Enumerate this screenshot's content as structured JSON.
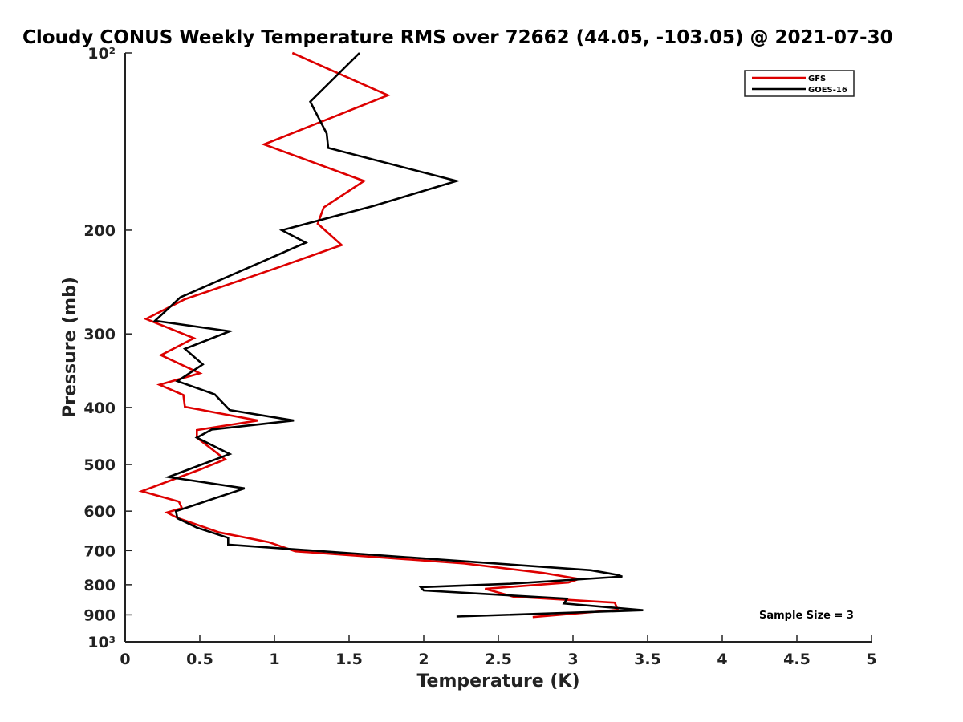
{
  "chart_data": {
    "type": "line",
    "title": "Cloudy CONUS Weekly Temperature RMS over 72662 (44.05, -103.05) @ 2021-07-30",
    "xlabel": "Temperature (K)",
    "ylabel": "Pressure (mb)",
    "xlim": [
      0,
      5
    ],
    "ylim": [
      100,
      1000
    ],
    "yscale": "log",
    "y_reversed": true,
    "grid": false,
    "legend_position": "top-right",
    "x_ticks": [
      0,
      0.5,
      1,
      1.5,
      2,
      2.5,
      3,
      3.5,
      4,
      4.5,
      5
    ],
    "x_tick_labels": [
      "0",
      "0.5",
      "1",
      "1.5",
      "2",
      "2.5",
      "3",
      "3.5",
      "4",
      "4.5",
      "5"
    ],
    "y_ticks": [
      100,
      200,
      300,
      400,
      500,
      600,
      700,
      800,
      900,
      1000
    ],
    "y_tick_labels": [
      "10²",
      "200",
      "300",
      "400",
      "500",
      "600",
      "700",
      "800",
      "900",
      "10³"
    ],
    "annotation": "Sample Size = 3",
    "series": [
      {
        "name": "GFS",
        "color": "#dd0000",
        "x": [
          1.12,
          1.76,
          0.93,
          1.6,
          1.33,
          1.29,
          1.45,
          1.01,
          0.4,
          0.14,
          0.46,
          0.24,
          0.5,
          0.23,
          0.39,
          0.4,
          0.89,
          0.48,
          0.48,
          0.67,
          0.5,
          0.11,
          0.36,
          0.38,
          0.28,
          0.35,
          0.63,
          0.96,
          1.14,
          2.27,
          2.8,
          3.04,
          2.97,
          2.41,
          2.6,
          3.28,
          3.3,
          2.73
        ],
        "y": [
          100,
          118,
          143,
          165,
          183,
          195,
          212,
          232,
          262,
          283,
          305,
          326,
          350,
          366,
          381,
          399,
          421,
          437,
          450,
          490,
          510,
          555,
          578,
          593,
          603,
          616,
          652,
          677,
          702,
          736,
          764,
          782,
          793,
          813,
          838,
          858,
          883,
          908
        ]
      },
      {
        "name": "GOES-16",
        "color": "#000000",
        "x": [
          1.57,
          1.24,
          1.35,
          1.36,
          2.22,
          1.66,
          1.05,
          1.21,
          0.37,
          0.2,
          0.7,
          0.4,
          0.52,
          0.35,
          0.6,
          0.7,
          1.13,
          0.58,
          0.48,
          0.7,
          0.29,
          0.8,
          0.34,
          0.35,
          0.48,
          0.69,
          0.69,
          3.12,
          3.3,
          3.33,
          2.58,
          1.98,
          2.0,
          2.96,
          2.94,
          3.47,
          2.22
        ],
        "y": [
          100,
          121,
          137,
          145,
          165,
          182,
          200,
          210,
          260,
          285,
          297,
          318,
          338,
          361,
          380,
          404,
          421,
          436,
          450,
          480,
          525,
          549,
          600,
          617,
          640,
          666,
          684,
          756,
          770,
          775,
          797,
          808,
          818,
          845,
          861,
          884,
          906
        ]
      }
    ]
  }
}
